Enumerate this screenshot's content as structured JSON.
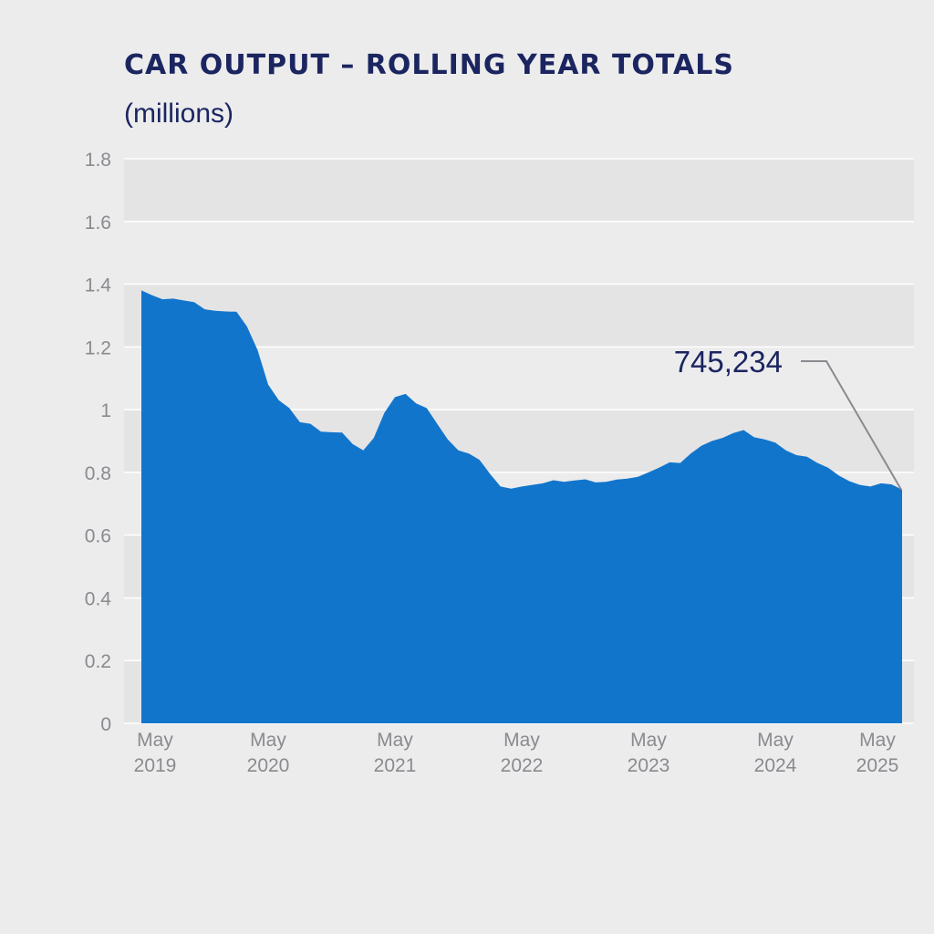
{
  "chart_data": {
    "type": "area",
    "title": "CAR OUTPUT – ROLLING YEAR TOTALS",
    "subtitle": "(millions)",
    "xlabel": "",
    "ylabel": "",
    "ylim": [
      0,
      1.8
    ],
    "y_ticks": [
      0,
      0.2,
      0.4,
      0.6,
      0.8,
      1,
      1.2,
      1.4,
      1.6,
      1.8
    ],
    "y_tick_labels": [
      "0",
      "0.2",
      "0.4",
      "0.6",
      "0.8",
      "1",
      "1.2",
      "1.4",
      "1.6",
      "1.8"
    ],
    "x_ticks": [
      {
        "month": 0,
        "line1": "May",
        "line2": "2019"
      },
      {
        "month": 12,
        "line1": "May",
        "line2": "2020"
      },
      {
        "month": 24,
        "line1": "May",
        "line2": "2021"
      },
      {
        "month": 36,
        "line1": "May",
        "line2": "2022"
      },
      {
        "month": 48,
        "line1": "May",
        "line2": "2023"
      },
      {
        "month": 60,
        "line1": "May",
        "line2": "2024"
      },
      {
        "month": 72,
        "line1": "May",
        "line2": "2025"
      }
    ],
    "series": [
      {
        "color": "#1275cc",
        "start": "May 2019",
        "values": [
          1.38,
          1.365,
          1.352,
          1.354,
          1.348,
          1.343,
          1.32,
          1.315,
          1.313,
          1.312,
          1.265,
          1.19,
          1.08,
          1.03,
          1.005,
          0.96,
          0.955,
          0.93,
          0.928,
          0.927,
          0.89,
          0.87,
          0.91,
          0.99,
          1.04,
          1.05,
          1.02,
          1.005,
          0.955,
          0.905,
          0.87,
          0.86,
          0.84,
          0.795,
          0.755,
          0.748,
          0.755,
          0.76,
          0.765,
          0.775,
          0.77,
          0.774,
          0.778,
          0.768,
          0.77,
          0.777,
          0.78,
          0.786,
          0.8,
          0.815,
          0.832,
          0.83,
          0.86,
          0.885,
          0.9,
          0.91,
          0.925,
          0.935,
          0.912,
          0.905,
          0.895,
          0.87,
          0.855,
          0.85,
          0.83,
          0.815,
          0.79,
          0.772,
          0.76,
          0.755,
          0.765,
          0.762,
          0.745
        ]
      }
    ],
    "annotations": [
      {
        "text": "745,234",
        "x_month": 72.5,
        "y": 0.745234
      }
    ],
    "grid": true,
    "band_fill": "#e4e4e5",
    "grid_color": "#ffffff",
    "title_color": "#1b2560",
    "tick_color": "#8a8a8f",
    "legend": "none"
  }
}
